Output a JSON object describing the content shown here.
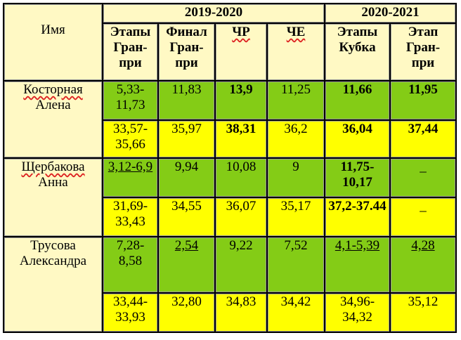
{
  "header": {
    "name_label": "Имя",
    "season_1": "2019-2020",
    "season_2": "2020-2021",
    "columns": [
      [
        "Этапы",
        "Гран-",
        "при"
      ],
      [
        "Финал",
        "Гран-",
        "при"
      ],
      [
        "ЧР"
      ],
      [
        "ЧЕ"
      ],
      [
        "Этапы",
        "Кубка"
      ],
      [
        "Этап",
        "Гран-",
        "при"
      ]
    ]
  },
  "skaters": [
    {
      "name_lines": [
        "Косторная",
        "Алена"
      ],
      "green_row": [
        "5,33-11,73",
        "11,83",
        "13,9",
        "11,25",
        "11,66",
        "11,95"
      ],
      "yellow_row": [
        "33,57-35,66",
        "35,97",
        "38,31",
        "36,2",
        "36,04",
        "37,44"
      ]
    },
    {
      "name_lines": [
        "Щербакова",
        "Анна"
      ],
      "green_row": [
        "3,12-6,9",
        "9,94",
        "10,08",
        "9",
        "11,75-10,17",
        "_"
      ],
      "yellow_row": [
        "31,69-33,43",
        "34,55",
        "36,07",
        "35,17",
        "37,2-37.44",
        "_"
      ]
    },
    {
      "name_lines": [
        "Трусова",
        "Александра"
      ],
      "green_row": [
        "7,28-8,58",
        "2,54",
        "9,22",
        "7,52",
        "4,1-5,39",
        "4,28"
      ],
      "yellow_row": [
        "33,44-33,93",
        "32,80",
        "34,83",
        "34,42",
        "34,96-34,32",
        "35,12"
      ]
    }
  ],
  "colors": {
    "header_bg": "#fff9c4",
    "green_row": "#84cc16",
    "yellow_row": "#ffff00"
  }
}
